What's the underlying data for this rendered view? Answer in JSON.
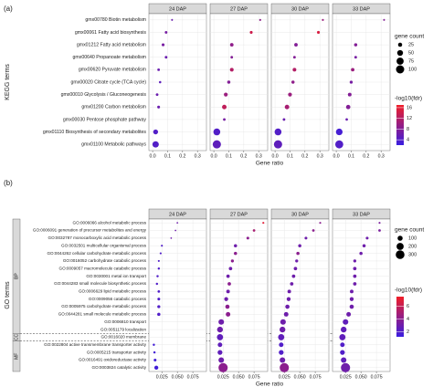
{
  "chart_data": [
    {
      "type": "dot",
      "panel_label": "(a)",
      "y_label": "KEGG terms",
      "x_label": "Gene ratio",
      "categories": [
        "gmx00780  Biotin metabolism",
        "gmx00061  Fatty acid biosynthesis",
        "gmx01212  Fatty acid metabolism",
        "gmx00640  Propanoate metabolism",
        "gmx00620  Pyruvate metabolism",
        "gmx00020  Citrate cycle (TCA cycle)",
        "gmx00010  Glycolysis / Gluconeogenesis",
        "gmx01200  Carbon metabolism",
        "gmx00030  Pentose phosphate pathway",
        "gmx01110  Biosynthesis of secondary metabolites",
        "gmx01100  Metabolic pathways"
      ],
      "xlim": [
        -0.025,
        0.36
      ],
      "xticks": [
        {
          "value": 0,
          "label": "0.0"
        },
        0.1,
        0.2,
        0.3
      ],
      "facets": [
        {
          "name": "24 DAP",
          "x": [
            0.13,
            0.09,
            0.07,
            0.09,
            0.04,
            0.05,
            0.03,
            0.04,
            null,
            0.02,
            0.02
          ],
          "size": [
            5,
            10,
            12,
            10,
            10,
            8,
            10,
            12,
            null,
            35,
            60
          ],
          "fdr": [
            6,
            7,
            7,
            6,
            6,
            5,
            6,
            6,
            null,
            4,
            4
          ]
        },
        {
          "name": "27 DAP",
          "x": [
            0.31,
            0.25,
            0.12,
            0.12,
            0.12,
            0.1,
            0.08,
            0.07,
            0.07,
            0.02,
            0.02
          ],
          "size": [
            6,
            12,
            18,
            10,
            20,
            15,
            22,
            30,
            10,
            70,
            100
          ],
          "fdr": [
            9,
            14,
            9,
            8,
            12,
            8,
            10,
            13,
            7,
            4,
            5
          ]
        },
        {
          "name": "30 DAP",
          "x": [
            0.32,
            0.29,
            0.14,
            0.13,
            0.13,
            0.12,
            0.1,
            0.08,
            0.06,
            0.02,
            0.02
          ],
          "size": [
            6,
            12,
            18,
            10,
            20,
            15,
            22,
            30,
            10,
            70,
            100
          ],
          "fdr": [
            10,
            15,
            8,
            8,
            12,
            9,
            10,
            11,
            6,
            4,
            5
          ]
        },
        {
          "name": "33 DAP",
          "x": [
            0.32,
            null,
            0.13,
            0.13,
            0.11,
            0.1,
            0.09,
            0.08,
            0.07,
            0.02,
            0.02
          ],
          "size": [
            5,
            null,
            15,
            10,
            18,
            14,
            20,
            28,
            9,
            65,
            95
          ],
          "fdr": [
            8,
            null,
            8,
            7,
            10,
            7,
            8,
            8,
            6,
            3,
            4
          ]
        }
      ],
      "size_title": "gene count",
      "size_ticks": [
        25,
        50,
        75,
        100
      ],
      "color_title": "-log10(fdr)",
      "color_ticks": [
        4,
        8,
        12,
        16
      ],
      "color_lim": [
        2,
        17
      ],
      "color_low": "#3a1ee0",
      "color_high": "#f01e28"
    },
    {
      "type": "dot",
      "panel_label": "(b)",
      "y_label": "GO terms",
      "x_label": "Gene ratio",
      "groups": [
        {
          "name": "BP",
          "terms": [
            "GO:0006066  alcohol metabolic process",
            "GO:0006091  generation of precursor metabolites and energy",
            "GO:0032787  monocarboxylic acid metabolic process",
            "GO:0032501  multicellular organismal process",
            "GO:0044262  cellular carbohydrate metabolic process",
            "GO:0016052  carbohydrate catabolic process",
            "GO:0009057  macromolecule catabolic process",
            "GO:0030001  metal ion transport",
            "GO:0044283  small molecule biosynthetic process",
            "GO:0006629  lipid metabolic process",
            "GO:0009056  catabolic process",
            "GO:0005975  carbohydrate metabolic process",
            "GO:0044281  small molecule metabolic process",
            "GO:0006810  transport",
            "GO:0051179  localization"
          ]
        },
        {
          "name": "CC",
          "terms": [
            "GO:0016020  membrane"
          ]
        },
        {
          "name": "MF",
          "terms": [
            "GO:0022804  active transmembrane transporter activity",
            "GO:0005215  transporter activity",
            "GO:0016491  oxidoreductase activity",
            "GO:0003824  catalytic activity"
          ]
        }
      ],
      "xlim": [
        0.004,
        0.097
      ],
      "xticks": [
        0.025,
        {
          "value": 0.05,
          "label": "0.050"
        },
        0.075
      ],
      "facets": [
        {
          "name": "24 DAP",
          "x": [
            0.05,
            0.047,
            0.04,
            0.025,
            0.023,
            0.02,
            0.02,
            0.018,
            0.017,
            0.02,
            0.02,
            0.02,
            0.02,
            null,
            null,
            null,
            0.012,
            0.013,
            0.014,
            0.016
          ],
          "size": [
            10,
            10,
            10,
            15,
            15,
            15,
            20,
            20,
            20,
            25,
            30,
            35,
            40,
            null,
            null,
            null,
            20,
            20,
            30,
            60
          ],
          "fdr": [
            3,
            3,
            3,
            2,
            2,
            2,
            2,
            2,
            2,
            2,
            2,
            2,
            2,
            null,
            null,
            null,
            1.5,
            1.5,
            1.5,
            1.5
          ]
        },
        {
          "name": "27 DAP",
          "x": [
            0.09,
            0.075,
            0.065,
            0.045,
            0.045,
            0.04,
            0.037,
            0.033,
            0.035,
            0.033,
            0.03,
            0.032,
            0.033,
            0.022,
            0.02,
            0.02,
            0.02,
            0.02,
            0.022,
            0.025
          ],
          "size": [
            15,
            25,
            30,
            40,
            40,
            35,
            45,
            45,
            45,
            50,
            60,
            70,
            80,
            120,
            130,
            150,
            80,
            90,
            120,
            330
          ],
          "fdr": [
            7,
            5,
            4,
            3,
            4,
            4,
            3,
            3,
            4,
            3,
            3,
            4,
            4,
            3,
            3,
            2.5,
            2.5,
            2.5,
            3,
            4
          ]
        },
        {
          "name": "30 DAP",
          "x": [
            0.083,
            0.072,
            0.06,
            0.05,
            0.047,
            0.045,
            0.043,
            0.04,
            0.037,
            0.033,
            0.032,
            0.03,
            0.028,
            0.023,
            0.022,
            0.02,
            0.02,
            0.02,
            0.022,
            0.025
          ],
          "size": [
            15,
            25,
            30,
            40,
            40,
            35,
            45,
            45,
            45,
            50,
            60,
            70,
            80,
            120,
            130,
            150,
            80,
            90,
            120,
            330
          ],
          "fdr": [
            4,
            4,
            3,
            3,
            4,
            3,
            3,
            3,
            3,
            3,
            3,
            3,
            3,
            3,
            3,
            2.5,
            2,
            2,
            3,
            4
          ]
        },
        {
          "name": "33 DAP",
          "x": [
            0.08,
            0.08,
            0.06,
            0.055,
            0.05,
            0.04,
            0.04,
            0.04,
            0.04,
            0.035,
            0.035,
            0.035,
            0.03,
            0.025,
            0.022,
            0.02,
            0.02,
            0.02,
            0.022,
            0.025
          ],
          "size": [
            15,
            25,
            30,
            40,
            40,
            35,
            45,
            45,
            45,
            50,
            60,
            70,
            80,
            120,
            130,
            150,
            80,
            90,
            120,
            330
          ],
          "fdr": [
            3.5,
            3.5,
            3,
            3,
            3,
            3,
            3,
            3,
            3,
            3,
            3,
            3,
            3,
            2.5,
            2.5,
            2.5,
            2,
            2,
            2.5,
            3
          ]
        }
      ],
      "size_title": "gene count",
      "size_ticks": [
        100,
        200,
        300
      ],
      "color_title": "-log10(fdr)",
      "color_ticks": [
        2,
        4,
        6
      ],
      "color_lim": [
        1.2,
        7.5
      ],
      "color_low": "#3a1ee0",
      "color_high": "#f01e28"
    }
  ]
}
